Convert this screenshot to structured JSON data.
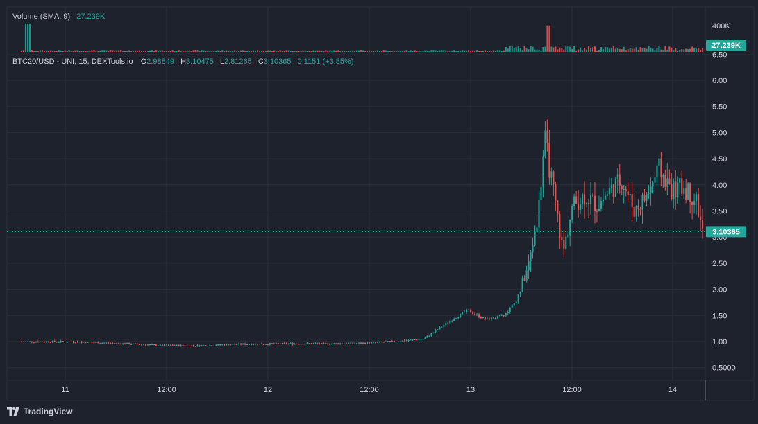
{
  "volume_legend": {
    "label": "Volume (SMA, 9)",
    "value": "27.239K"
  },
  "price_legend": {
    "symbol": "BTC20/USD - UNI, 15, DEXTools.io",
    "o_label": "O",
    "o_value": "2.98849",
    "h_label": "H",
    "h_value": "3.10475",
    "l_label": "L",
    "l_value": "2.81265",
    "c_label": "C",
    "c_value": "3.10365",
    "change": "0.1151 (+3.85%)"
  },
  "volume_axis": {
    "tick": "400K",
    "current_badge": "27.239K"
  },
  "price_axis": {
    "ticks": [
      "6.50",
      "6.00",
      "5.50",
      "5.00",
      "4.50",
      "4.00",
      "3.50",
      "3.00",
      "2.50",
      "2.00",
      "1.50",
      "1.00",
      "0.5000"
    ],
    "current_badge": "3.10365"
  },
  "time_axis": {
    "ticks": [
      "11",
      "12:00",
      "12",
      "12:00",
      "13",
      "12:00",
      "14"
    ]
  },
  "footer": {
    "brand": "TradingView"
  },
  "colors": {
    "background": "#1e222d",
    "up": "#26a69a",
    "down": "#ef5350",
    "grid": "#2a2e39",
    "text": "#d1d4dc"
  },
  "chart_data": {
    "type": "candlestick",
    "series_name": "BTC20/USD - UNI, 15, DEXTools.io",
    "last_close": 3.10365,
    "ylim": [
      0.5,
      6.5
    ],
    "x_ticks": [
      "11",
      "12:00",
      "12",
      "12:00",
      "13",
      "12:00",
      "14"
    ],
    "price_path": [
      [
        0.0,
        1.0
      ],
      [
        0.08,
        1.0
      ],
      [
        0.15,
        0.97
      ],
      [
        0.22,
        0.93
      ],
      [
        0.28,
        0.92
      ],
      [
        0.35,
        0.95
      ],
      [
        0.42,
        0.96
      ],
      [
        0.5,
        0.96
      ],
      [
        0.55,
        0.97
      ],
      [
        0.6,
        1.0
      ],
      [
        0.65,
        1.05
      ],
      [
        0.68,
        1.3
      ],
      [
        0.72,
        1.6
      ],
      [
        0.75,
        1.42
      ],
      [
        0.78,
        1.5
      ],
      [
        0.8,
        1.8
      ],
      [
        0.82,
        2.5
      ],
      [
        0.835,
        3.5
      ],
      [
        0.845,
        4.9
      ],
      [
        0.86,
        3.8
      ],
      [
        0.875,
        2.7
      ],
      [
        0.89,
        3.6
      ],
      [
        0.91,
        3.8
      ],
      [
        0.93,
        3.6
      ],
      [
        0.95,
        3.9
      ],
      [
        0.97,
        4.1
      ],
      [
        0.99,
        3.5
      ],
      [
        1.01,
        3.8
      ],
      [
        1.03,
        4.3
      ],
      [
        1.05,
        3.9
      ],
      [
        1.07,
        3.95
      ],
      [
        1.09,
        3.7
      ],
      [
        1.1,
        3.1
      ]
    ],
    "volume_ylim": [
      0,
      450000
    ],
    "volume_peaks": [
      {
        "at": 0.01,
        "value": 440000
      },
      {
        "at": 0.85,
        "value": 410000
      }
    ],
    "volume_sma_last": "27.239K"
  }
}
